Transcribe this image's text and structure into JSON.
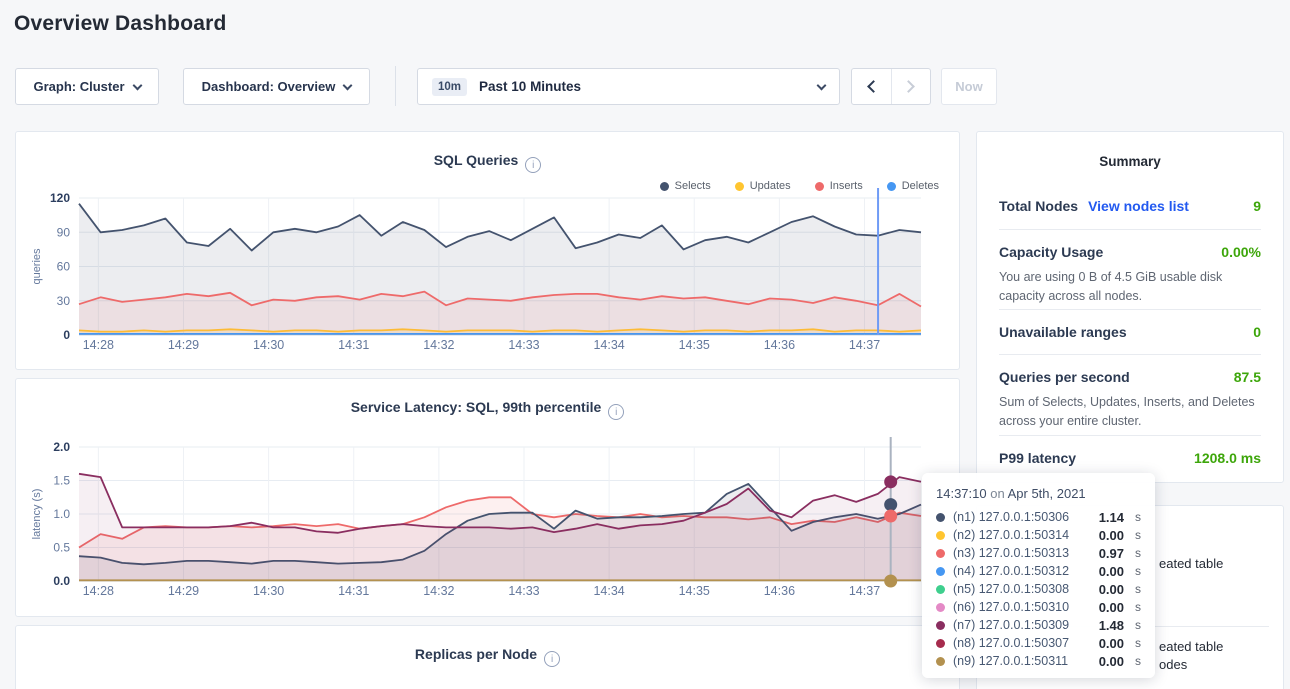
{
  "page": {
    "title": "Overview Dashboard"
  },
  "toolbar": {
    "graph_dropdown": "Graph: Cluster",
    "dashboard_dropdown": "Dashboard: Overview",
    "time_range": {
      "badge": "10m",
      "label": "Past 10 Minutes"
    },
    "now_label": "Now"
  },
  "colors": {
    "accent_green": "#3da60a",
    "link_blue": "#2259f0",
    "hover_line_blue": "#6f9bf5"
  },
  "chart_data": [
    {
      "type": "line",
      "title": "SQL Queries",
      "ylabel": "queries",
      "ylim": [
        0,
        120
      ],
      "ytick_labels": [
        "0",
        "30",
        "60",
        "90",
        "120"
      ],
      "xticks": [
        "14:28",
        "14:29",
        "14:30",
        "14:31",
        "14:32",
        "14:33",
        "14:34",
        "14:35",
        "14:36",
        "14:37"
      ],
      "grid": true,
      "legend_position": "top-right",
      "series": [
        {
          "name": "Selects",
          "color": "#44536e",
          "fill": "rgba(68,83,110,0.10)",
          "values": [
            115,
            90,
            92,
            96,
            102,
            81,
            78,
            93,
            74,
            90,
            93,
            90,
            95,
            105,
            87,
            99,
            92,
            77,
            86,
            91,
            83,
            93,
            103,
            76,
            81,
            88,
            85,
            96,
            75,
            83,
            86,
            81,
            90,
            99,
            104,
            95,
            88,
            87,
            92,
            90
          ]
        },
        {
          "name": "Updates",
          "color": "#ffc530",
          "fill": "rgba(255,197,48,0.14)",
          "values": [
            4,
            3,
            3,
            4,
            3,
            4,
            4,
            5,
            4,
            3,
            4,
            4,
            3,
            4,
            4,
            5,
            4,
            3,
            4,
            4,
            4,
            3,
            4,
            4,
            3,
            4,
            5,
            4,
            3,
            4,
            4,
            3,
            4,
            4,
            5,
            3,
            4,
            4,
            3,
            4
          ]
        },
        {
          "name": "Inserts",
          "color": "#ee6a6a",
          "fill": "rgba(238,106,106,0.10)",
          "values": [
            27,
            33,
            29,
            31,
            33,
            36,
            34,
            37,
            26,
            31,
            30,
            33,
            34,
            31,
            36,
            34,
            38,
            26,
            32,
            31,
            30,
            33,
            35,
            36,
            36,
            33,
            31,
            34,
            32,
            33,
            30,
            27,
            32,
            31,
            28,
            33,
            30,
            26,
            36,
            25
          ]
        },
        {
          "name": "Deletes",
          "color": "#4697f2",
          "fill": null,
          "values": [
            1,
            1,
            1,
            1,
            1,
            1,
            1,
            1,
            1,
            1,
            1,
            1,
            1,
            1,
            1,
            1,
            1,
            1,
            1,
            1,
            1,
            1,
            1,
            1,
            1,
            1,
            1,
            1,
            1,
            1,
            1,
            1,
            1,
            1,
            1,
            1,
            1,
            1,
            1,
            1
          ]
        }
      ],
      "hover": {
        "frac": 0.949,
        "color": "#6f9bf5",
        "dots": []
      }
    },
    {
      "type": "line",
      "title": "Service Latency: SQL, 99th percentile",
      "ylabel": "latency (s)",
      "ylim": [
        0,
        2
      ],
      "ytick_labels": [
        "0.0",
        "0.5",
        "1.0",
        "1.5",
        "2.0"
      ],
      "xticks": [
        "14:28",
        "14:29",
        "14:30",
        "14:31",
        "14:32",
        "14:33",
        "14:34",
        "14:35",
        "14:36",
        "14:37"
      ],
      "grid": true,
      "legend_position": "none",
      "series": [
        {
          "name": "(n3) 127.0.0.1:50313",
          "color": "#ee6a6a",
          "fill": "rgba(238,106,106,0.10)",
          "values": [
            0.5,
            0.7,
            0.63,
            0.8,
            0.82,
            0.8,
            0.8,
            0.82,
            0.8,
            0.82,
            0.85,
            0.82,
            0.85,
            0.78,
            0.82,
            0.85,
            0.95,
            1.1,
            1.2,
            1.25,
            1.25,
            1.0,
            0.95,
            1.0,
            0.97,
            0.95,
            1.0,
            0.95,
            0.97,
            0.95,
            0.95,
            0.92,
            0.95,
            0.85,
            0.9,
            0.88,
            0.95,
            0.88,
            1.02,
            0.97
          ]
        },
        {
          "name": "(n1) 127.0.0.1:50306",
          "color": "#44536e",
          "fill": "rgba(68,83,110,0.10)",
          "values": [
            0.37,
            0.35,
            0.27,
            0.25,
            0.27,
            0.3,
            0.3,
            0.28,
            0.26,
            0.3,
            0.3,
            0.28,
            0.26,
            0.27,
            0.28,
            0.32,
            0.45,
            0.7,
            0.9,
            1.0,
            1.02,
            1.02,
            0.78,
            1.05,
            0.93,
            0.95,
            0.95,
            0.97,
            1.0,
            1.02,
            1.3,
            1.45,
            1.1,
            0.75,
            0.88,
            0.95,
            1.0,
            0.93,
            1.0,
            1.14
          ]
        },
        {
          "name": "(n7) 127.0.0.1:50309",
          "color": "#8a2e60",
          "fill": "rgba(138,46,96,0.08)",
          "values": [
            1.6,
            1.55,
            0.8,
            0.8,
            0.8,
            0.8,
            0.8,
            0.82,
            0.87,
            0.8,
            0.8,
            0.74,
            0.72,
            0.78,
            0.82,
            0.85,
            0.82,
            0.8,
            0.8,
            0.8,
            0.78,
            0.8,
            0.73,
            0.78,
            0.85,
            0.78,
            0.83,
            0.85,
            0.9,
            1.02,
            1.15,
            1.38,
            1.05,
            0.95,
            1.2,
            1.28,
            1.18,
            1.3,
            1.55,
            1.48
          ]
        },
        {
          "name": "(n9) 127.0.0.1:50311",
          "color": "#b3914f",
          "fill": null,
          "values": [
            0.01,
            0.01,
            0.01,
            0.01,
            0.01,
            0.01,
            0.01,
            0.01,
            0.01,
            0.01,
            0.01,
            0.01,
            0.01,
            0.01,
            0.01,
            0.01,
            0.01,
            0.01,
            0.01,
            0.01,
            0.01,
            0.01,
            0.01,
            0.01,
            0.01,
            0.01,
            0.01,
            0.01,
            0.01,
            0.01,
            0.01,
            0.01,
            0.01,
            0.01,
            0.01,
            0.01,
            0.01,
            0.01,
            0.01,
            0.01
          ]
        }
      ],
      "hover": {
        "frac": 0.964,
        "color": "#aab3c0",
        "dots": [
          {
            "color": "#8a2e60",
            "value": 1.48
          },
          {
            "color": "#44536e",
            "value": 1.14
          },
          {
            "color": "#ee6a6a",
            "value": 0.97
          },
          {
            "color": "#b3914f",
            "value": 0.0
          }
        ]
      }
    },
    {
      "type": "line",
      "title": "Replicas per Node"
    }
  ],
  "summary": {
    "title": "Summary",
    "total_nodes": {
      "label": "Total Nodes",
      "link": "View nodes list",
      "value": "9"
    },
    "capacity": {
      "label": "Capacity Usage",
      "value": "0.00%",
      "description": "You are using 0 B of 4.5 GiB usable disk capacity across all nodes."
    },
    "unavailable": {
      "label": "Unavailable ranges",
      "value": "0"
    },
    "qps": {
      "label": "Queries per second",
      "value": "87.5",
      "description": "Sum of Selects, Updates, Inserts, and Deletes across your entire cluster."
    },
    "p99": {
      "label": "P99 latency",
      "value": "1208.0 ms"
    }
  },
  "tooltip": {
    "time": "14:37:10",
    "preposition": "on",
    "date": "Apr 5th, 2021",
    "rows": [
      {
        "color": "#44536e",
        "label": "(n1) 127.0.0.1:50306",
        "value": "1.14",
        "unit": "s"
      },
      {
        "color": "#ffc530",
        "label": "(n2) 127.0.0.1:50314",
        "value": "0.00",
        "unit": "s"
      },
      {
        "color": "#ee6a6a",
        "label": "(n3) 127.0.0.1:50313",
        "value": "0.97",
        "unit": "s"
      },
      {
        "color": "#4697f2",
        "label": "(n4) 127.0.0.1:50312",
        "value": "0.00",
        "unit": "s"
      },
      {
        "color": "#3fcf8e",
        "label": "(n5) 127.0.0.1:50308",
        "value": "0.00",
        "unit": "s"
      },
      {
        "color": "#e48ac6",
        "label": "(n6) 127.0.0.1:50310",
        "value": "0.00",
        "unit": "s"
      },
      {
        "color": "#8a2e60",
        "label": "(n7) 127.0.0.1:50309",
        "value": "1.48",
        "unit": "s"
      },
      {
        "color": "#a62c4d",
        "label": "(n8) 127.0.0.1:50307",
        "value": "0.00",
        "unit": "s"
      },
      {
        "color": "#b3914f",
        "label": "(n9) 127.0.0.1:50311",
        "value": "0.00",
        "unit": "s"
      }
    ]
  },
  "events": {
    "fragments": [
      "eated table",
      "eated table",
      "odes"
    ]
  }
}
